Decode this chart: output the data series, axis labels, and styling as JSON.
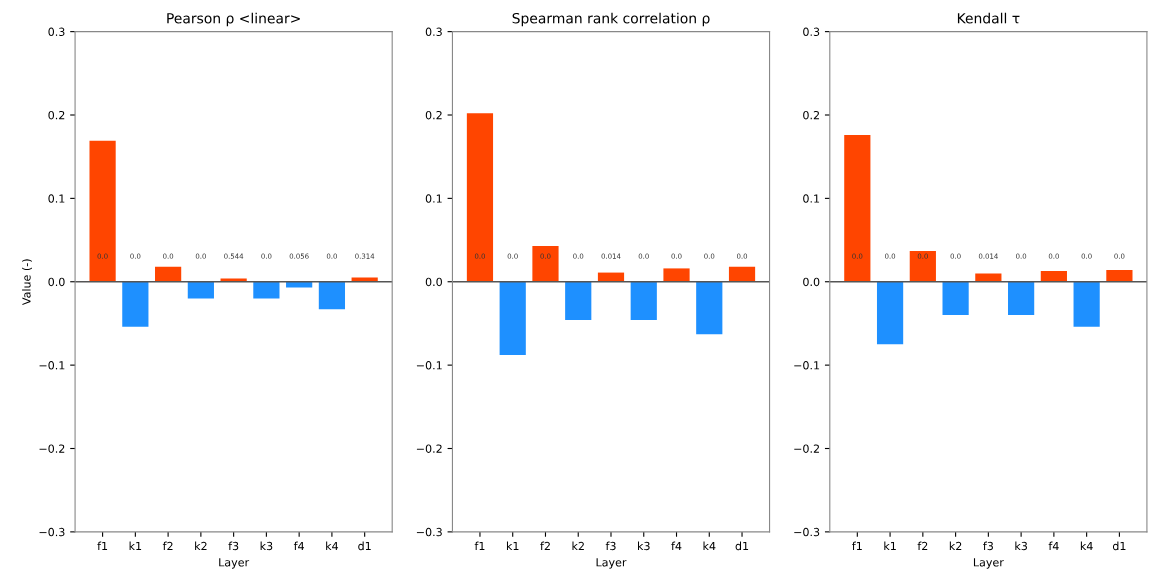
{
  "chart_data": [
    {
      "type": "bar",
      "title": "Pearson ρ <linear>",
      "xlabel": "Layer",
      "ylabel": "Value (-)",
      "categories": [
        "f1",
        "k1",
        "f2",
        "k2",
        "f3",
        "k3",
        "f4",
        "k4",
        "d1"
      ],
      "values": [
        0.169,
        -0.054,
        0.018,
        -0.02,
        0.004,
        -0.02,
        -0.007,
        -0.033,
        0.005
      ],
      "colors": [
        "#ff4500",
        "#1e90ff",
        "#ff4500",
        "#1e90ff",
        "#ff4500",
        "#1e90ff",
        "#1e90ff",
        "#1e90ff",
        "#ff4500"
      ],
      "annotations": [
        "0.0",
        "0.0",
        "0.0",
        "0.0",
        "0.544",
        "0.0",
        "0.056",
        "0.0",
        "0.314"
      ],
      "ylim": [
        -0.3,
        0.3
      ],
      "yticks": [
        {
          "value": -0.3,
          "label": "−0.3"
        },
        {
          "value": -0.2,
          "label": "−0.2"
        },
        {
          "value": -0.1,
          "label": "−0.1"
        },
        {
          "value": 0,
          "label": "0.0"
        },
        0.1,
        0.2,
        0.3
      ],
      "ref_lines": [
        {
          "axis": "y",
          "value": 0,
          "color": "#555555"
        }
      ]
    },
    {
      "type": "bar",
      "title": "Spearman rank correlation ρ",
      "xlabel": "Layer",
      "categories": [
        "f1",
        "k1",
        "f2",
        "k2",
        "f3",
        "k3",
        "f4",
        "k4",
        "d1"
      ],
      "values": [
        0.202,
        -0.088,
        0.043,
        -0.046,
        0.011,
        -0.046,
        0.016,
        -0.063,
        0.018
      ],
      "colors": [
        "#ff4500",
        "#1e90ff",
        "#ff4500",
        "#1e90ff",
        "#ff4500",
        "#1e90ff",
        "#ff4500",
        "#1e90ff",
        "#ff4500"
      ],
      "annotations": [
        "0.0",
        "0.0",
        "0.0",
        "0.0",
        "0.014",
        "0.0",
        "0.0",
        "0.0",
        "0.0"
      ],
      "ylim": [
        -0.3,
        0.3
      ],
      "yticks": [
        {
          "value": -0.3,
          "label": "−0.3"
        },
        {
          "value": -0.2,
          "label": "−0.2"
        },
        {
          "value": -0.1,
          "label": "−0.1"
        },
        {
          "value": 0,
          "label": "0.0"
        },
        0.1,
        0.2,
        0.3
      ],
      "ref_lines": [
        {
          "axis": "y",
          "value": 0,
          "color": "#555555"
        }
      ]
    },
    {
      "type": "bar",
      "title": "Kendall τ",
      "xlabel": "Layer",
      "categories": [
        "f1",
        "k1",
        "f2",
        "k2",
        "f3",
        "k3",
        "f4",
        "k4",
        "d1"
      ],
      "values": [
        0.176,
        -0.075,
        0.037,
        -0.04,
        0.01,
        -0.04,
        0.013,
        -0.054,
        0.014
      ],
      "colors": [
        "#ff4500",
        "#1e90ff",
        "#ff4500",
        "#1e90ff",
        "#ff4500",
        "#1e90ff",
        "#ff4500",
        "#1e90ff",
        "#ff4500"
      ],
      "annotations": [
        "0.0",
        "0.0",
        "0.0",
        "0.0",
        "0.014",
        "0.0",
        "0.0",
        "0.0",
        "0.0"
      ],
      "ylim": [
        -0.3,
        0.3
      ],
      "yticks": [
        {
          "value": -0.3,
          "label": "−0.3"
        },
        {
          "value": -0.2,
          "label": "−0.2"
        },
        {
          "value": -0.1,
          "label": "−0.1"
        },
        {
          "value": 0,
          "label": "0.0"
        },
        0.1,
        0.2,
        0.3
      ],
      "ref_lines": [
        {
          "axis": "y",
          "value": 0,
          "color": "#555555"
        }
      ]
    }
  ]
}
